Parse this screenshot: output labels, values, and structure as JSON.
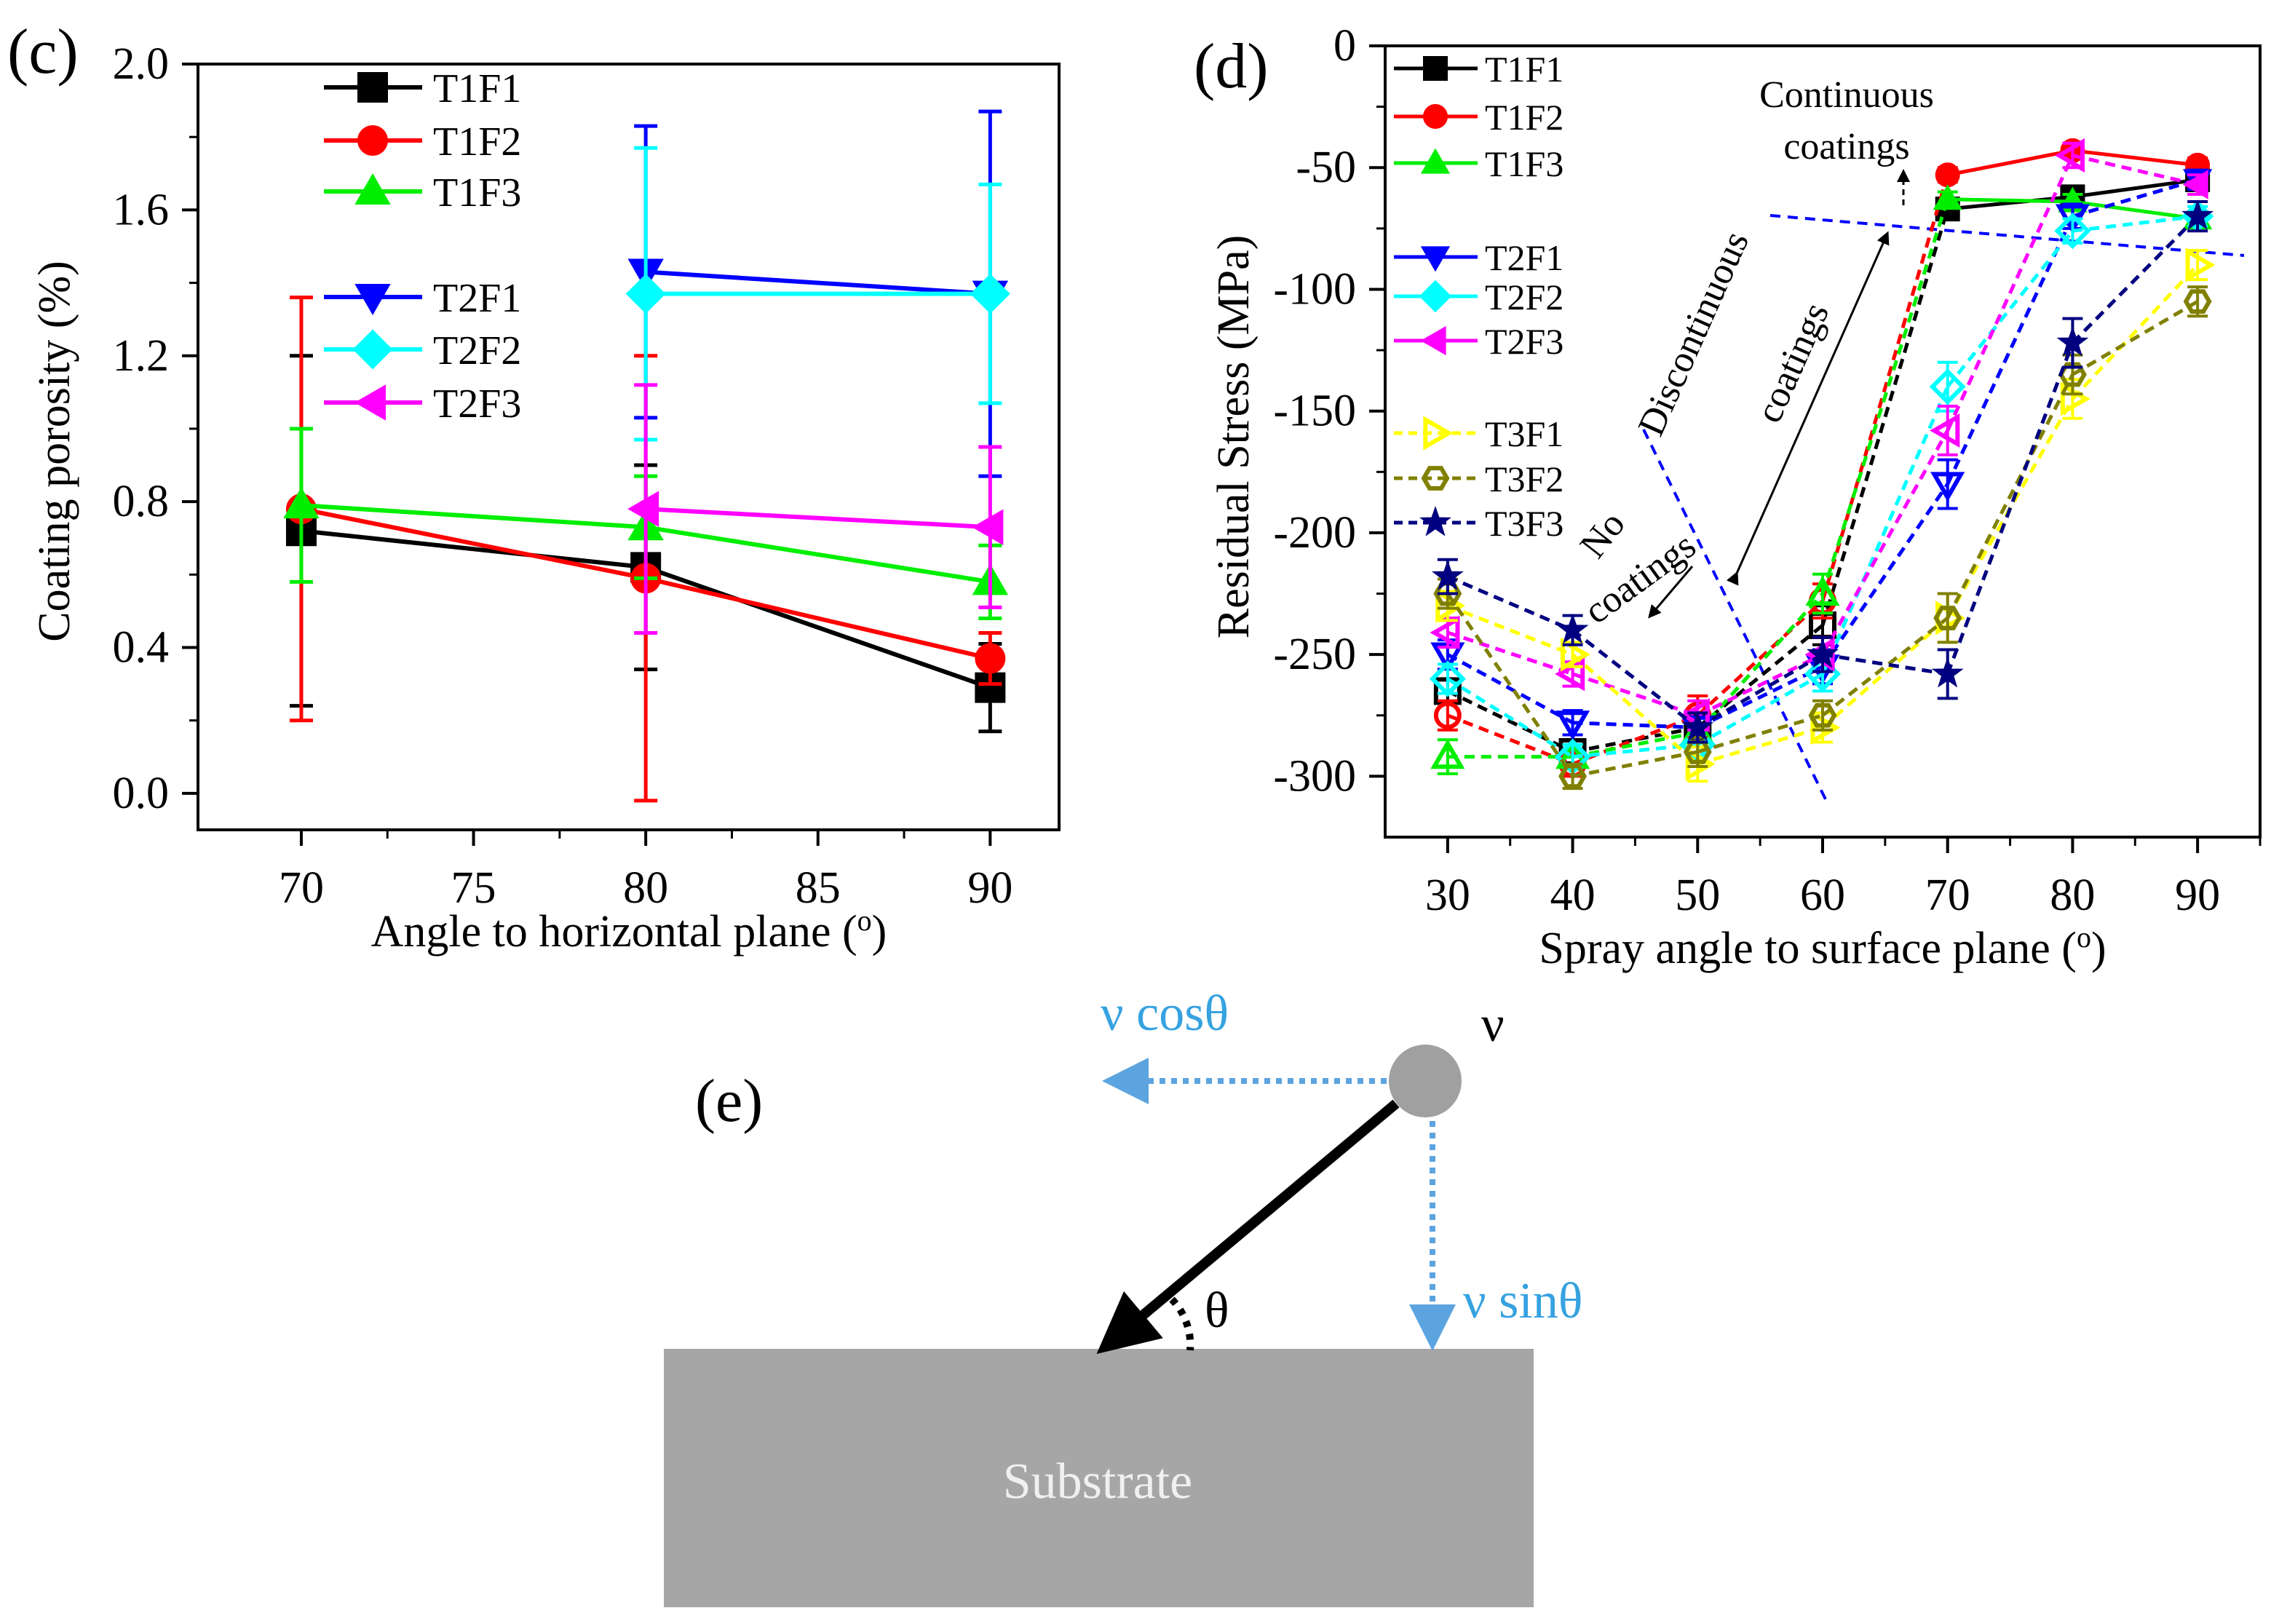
{
  "colors": {
    "T1F1": "#000000",
    "T1F2": "#ff0000",
    "T1F3": "#00ee00",
    "T2F1": "#0000ff",
    "T2F2": "#00ffff",
    "T2F3": "#ff00ff",
    "T3F1": "#ffff00",
    "T3F2": "#808000",
    "T3F3": "#000080",
    "guide": "#0000ff",
    "vector": "#5ba4e0",
    "substrate": "#a6a6a6",
    "particle": "#a0a0a0"
  },
  "chart_data": [
    {
      "panel_label": "(c)",
      "type": "line",
      "xlabel": "Angle to horizontal plane (",
      "xlabel_sup": "o",
      "xlabel_end": ")",
      "ylabel": "Coating porosity (%)",
      "xlim": [
        67,
        92
      ],
      "ylim": [
        -0.1,
        2.0
      ],
      "xticks": [
        70,
        75,
        80,
        85,
        90
      ],
      "xtick_labels": [
        "70",
        "75",
        "80",
        "85",
        "90"
      ],
      "yticks": [
        0.0,
        0.4,
        0.8,
        1.2,
        1.6,
        2.0
      ],
      "ytick_labels": [
        "0.0",
        "0.4",
        "0.8",
        "1.2",
        "1.6",
        "2.0"
      ],
      "legend_placement": "top-left",
      "series": [
        {
          "name": "T1F1",
          "marker": "square",
          "x": [
            70,
            80,
            90
          ],
          "y": [
            0.72,
            0.62,
            0.29
          ],
          "err": [
            0.48,
            0.28,
            0.12
          ]
        },
        {
          "name": "T1F2",
          "marker": "circle",
          "x": [
            70,
            80,
            90
          ],
          "y": [
            0.78,
            0.59,
            0.37
          ],
          "err": [
            0.58,
            0.61,
            0.07
          ]
        },
        {
          "name": "T1F3",
          "marker": "triangle-up",
          "x": [
            70,
            80,
            90
          ],
          "y": [
            0.79,
            0.73,
            0.58
          ],
          "err": [
            0.21,
            0.14,
            0.1
          ]
        },
        {
          "name": "T2F1",
          "marker": "triangle-down",
          "x": [
            80,
            90
          ],
          "y": [
            1.43,
            1.37
          ],
          "err": [
            0.4,
            0.5
          ]
        },
        {
          "name": "T2F2",
          "marker": "diamond",
          "x": [
            80,
            90
          ],
          "y": [
            1.37,
            1.37
          ],
          "err": [
            0.4,
            0.3
          ]
        },
        {
          "name": "T2F3",
          "marker": "triangle-left",
          "x": [
            80,
            90
          ],
          "y": [
            0.78,
            0.73
          ],
          "err": [
            0.34,
            0.22
          ]
        }
      ]
    },
    {
      "panel_label": "(d)",
      "type": "line",
      "xlabel": "Spray angle to surface plane (",
      "xlabel_sup": "o",
      "xlabel_end": ")",
      "ylabel": "Residual Stress (MPa)",
      "xlim": [
        25,
        95
      ],
      "ylim": [
        -325,
        0
      ],
      "xticks": [
        30,
        40,
        50,
        60,
        70,
        80,
        90
      ],
      "xtick_labels": [
        "30",
        "40",
        "50",
        "60",
        "70",
        "80",
        "90"
      ],
      "yticks": [
        0,
        -50,
        -100,
        -150,
        -200,
        -250,
        -300
      ],
      "ytick_labels": [
        "0",
        "-50",
        "-100",
        "-150",
        "-200",
        "-250",
        "-300"
      ],
      "legend_placement": "top-left",
      "annotations": {
        "continuous": [
          "Continuous",
          "coatings"
        ],
        "discontinuous": [
          "Discontinuous",
          "coatings"
        ],
        "none": [
          "No",
          "coatings"
        ]
      },
      "series": [
        {
          "name": "T1F1",
          "marker": "square",
          "x": [
            30,
            40,
            50,
            60,
            70,
            80,
            90
          ],
          "y": [
            -265,
            -290,
            -280,
            -238,
            -67,
            -62,
            -55
          ],
          "err": [
            5,
            5,
            6,
            8,
            4,
            3,
            3
          ]
        },
        {
          "name": "T1F2",
          "marker": "circle",
          "x": [
            30,
            40,
            50,
            60,
            70,
            80,
            90
          ],
          "y": [
            -275,
            -295,
            -275,
            -228,
            -53,
            -43,
            -49
          ],
          "err": [
            6,
            5,
            8,
            7,
            3,
            3,
            3
          ]
        },
        {
          "name": "T1F3",
          "marker": "triangle-up",
          "x": [
            30,
            40,
            50,
            60,
            70,
            80,
            90
          ],
          "y": [
            -292,
            -292,
            -282,
            -225,
            -63,
            -64,
            -71
          ],
          "err": [
            7,
            5,
            6,
            8,
            3,
            3,
            3
          ]
        },
        {
          "name": "T2F1",
          "marker": "triangle-down",
          "x": [
            30,
            40,
            50,
            60,
            70,
            80,
            90
          ],
          "y": [
            -250,
            -278,
            -280,
            -255,
            -180,
            -70,
            -55
          ],
          "err": [
            6,
            5,
            6,
            7,
            10,
            5,
            4
          ]
        },
        {
          "name": "T2F2",
          "marker": "diamond",
          "x": [
            30,
            40,
            50,
            60,
            70,
            80,
            90
          ],
          "y": [
            -260,
            -292,
            -287,
            -258,
            -140,
            -76,
            -70
          ],
          "err": [
            6,
            5,
            6,
            7,
            10,
            5,
            4
          ]
        },
        {
          "name": "T2F3",
          "marker": "triangle-left",
          "x": [
            30,
            40,
            50,
            60,
            70,
            80,
            90
          ],
          "y": [
            -241,
            -258,
            -275,
            -250,
            -158,
            -45,
            -57
          ],
          "err": [
            6,
            5,
            6,
            7,
            10,
            5,
            4
          ]
        },
        {
          "name": "T3F1",
          "marker": "triangle-right",
          "x": [
            30,
            40,
            50,
            60,
            70,
            80,
            90
          ],
          "y": [
            -230,
            -250,
            -295,
            -280,
            -235,
            -145,
            -90
          ],
          "err": [
            6,
            5,
            7,
            6,
            10,
            8,
            6
          ]
        },
        {
          "name": "T3F2",
          "marker": "hexagon",
          "x": [
            30,
            40,
            50,
            60,
            70,
            80,
            90
          ],
          "y": [
            -225,
            -300,
            -290,
            -275,
            -235,
            -135,
            -105
          ],
          "err": [
            6,
            5,
            6,
            6,
            10,
            8,
            6
          ]
        },
        {
          "name": "T3F3",
          "marker": "star",
          "x": [
            30,
            40,
            50,
            60,
            70,
            80,
            90
          ],
          "y": [
            -218,
            -240,
            -280,
            -250,
            -258,
            -122,
            -70
          ],
          "err": [
            7,
            6,
            6,
            7,
            10,
            10,
            6
          ]
        }
      ]
    }
  ],
  "diagram": {
    "panel_label": "(e)",
    "velocity": "ν",
    "cos_label": "ν cosθ",
    "sin_label": "ν sinθ",
    "angle_label": "θ",
    "substrate_label": "Substrate"
  }
}
